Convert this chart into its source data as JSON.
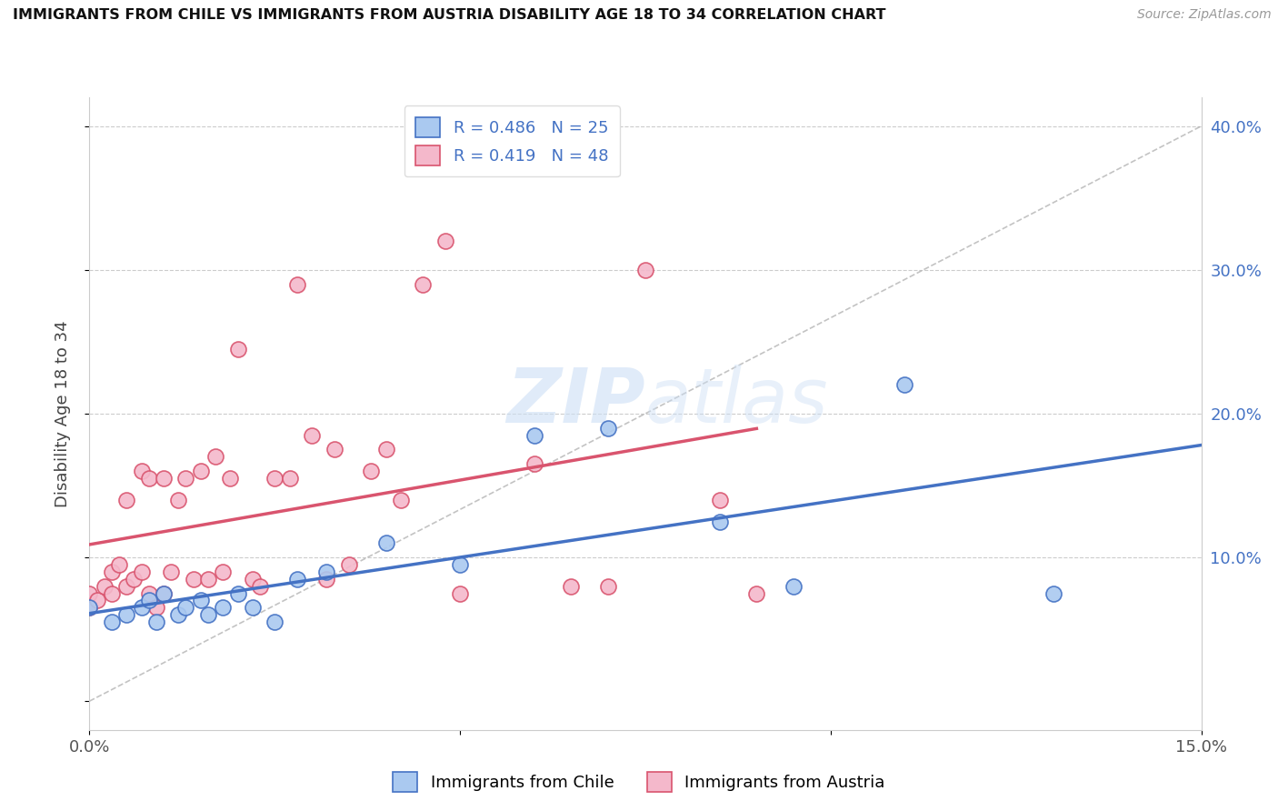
{
  "title": "IMMIGRANTS FROM CHILE VS IMMIGRANTS FROM AUSTRIA DISABILITY AGE 18 TO 34 CORRELATION CHART",
  "source": "Source: ZipAtlas.com",
  "ylabel": "Disability Age 18 to 34",
  "xlim": [
    0.0,
    0.15
  ],
  "ylim": [
    -0.02,
    0.42
  ],
  "chile_color": "#aac9f0",
  "chile_edge_color": "#4472c4",
  "austria_color": "#f4b8cb",
  "austria_edge_color": "#d9546e",
  "chile_R": 0.486,
  "chile_N": 25,
  "austria_R": 0.419,
  "austria_N": 48,
  "chile_scatter_x": [
    0.0,
    0.003,
    0.005,
    0.007,
    0.008,
    0.009,
    0.01,
    0.012,
    0.013,
    0.015,
    0.016,
    0.018,
    0.02,
    0.022,
    0.025,
    0.028,
    0.032,
    0.04,
    0.05,
    0.06,
    0.07,
    0.085,
    0.095,
    0.11,
    0.13
  ],
  "chile_scatter_y": [
    0.065,
    0.055,
    0.06,
    0.065,
    0.07,
    0.055,
    0.075,
    0.06,
    0.065,
    0.07,
    0.06,
    0.065,
    0.075,
    0.065,
    0.055,
    0.085,
    0.09,
    0.11,
    0.095,
    0.185,
    0.19,
    0.125,
    0.08,
    0.22,
    0.075
  ],
  "austria_scatter_x": [
    0.0,
    0.0,
    0.001,
    0.002,
    0.003,
    0.003,
    0.004,
    0.005,
    0.005,
    0.006,
    0.007,
    0.007,
    0.008,
    0.008,
    0.009,
    0.01,
    0.01,
    0.011,
    0.012,
    0.013,
    0.014,
    0.015,
    0.016,
    0.017,
    0.018,
    0.019,
    0.02,
    0.022,
    0.023,
    0.025,
    0.027,
    0.028,
    0.03,
    0.032,
    0.033,
    0.035,
    0.038,
    0.04,
    0.042,
    0.045,
    0.048,
    0.05,
    0.06,
    0.065,
    0.07,
    0.075,
    0.085,
    0.09
  ],
  "austria_scatter_y": [
    0.065,
    0.075,
    0.07,
    0.08,
    0.09,
    0.075,
    0.095,
    0.08,
    0.14,
    0.085,
    0.09,
    0.16,
    0.075,
    0.155,
    0.065,
    0.075,
    0.155,
    0.09,
    0.14,
    0.155,
    0.085,
    0.16,
    0.085,
    0.17,
    0.09,
    0.155,
    0.245,
    0.085,
    0.08,
    0.155,
    0.155,
    0.29,
    0.185,
    0.085,
    0.175,
    0.095,
    0.16,
    0.175,
    0.14,
    0.29,
    0.32,
    0.075,
    0.165,
    0.08,
    0.08,
    0.3,
    0.14,
    0.075
  ]
}
